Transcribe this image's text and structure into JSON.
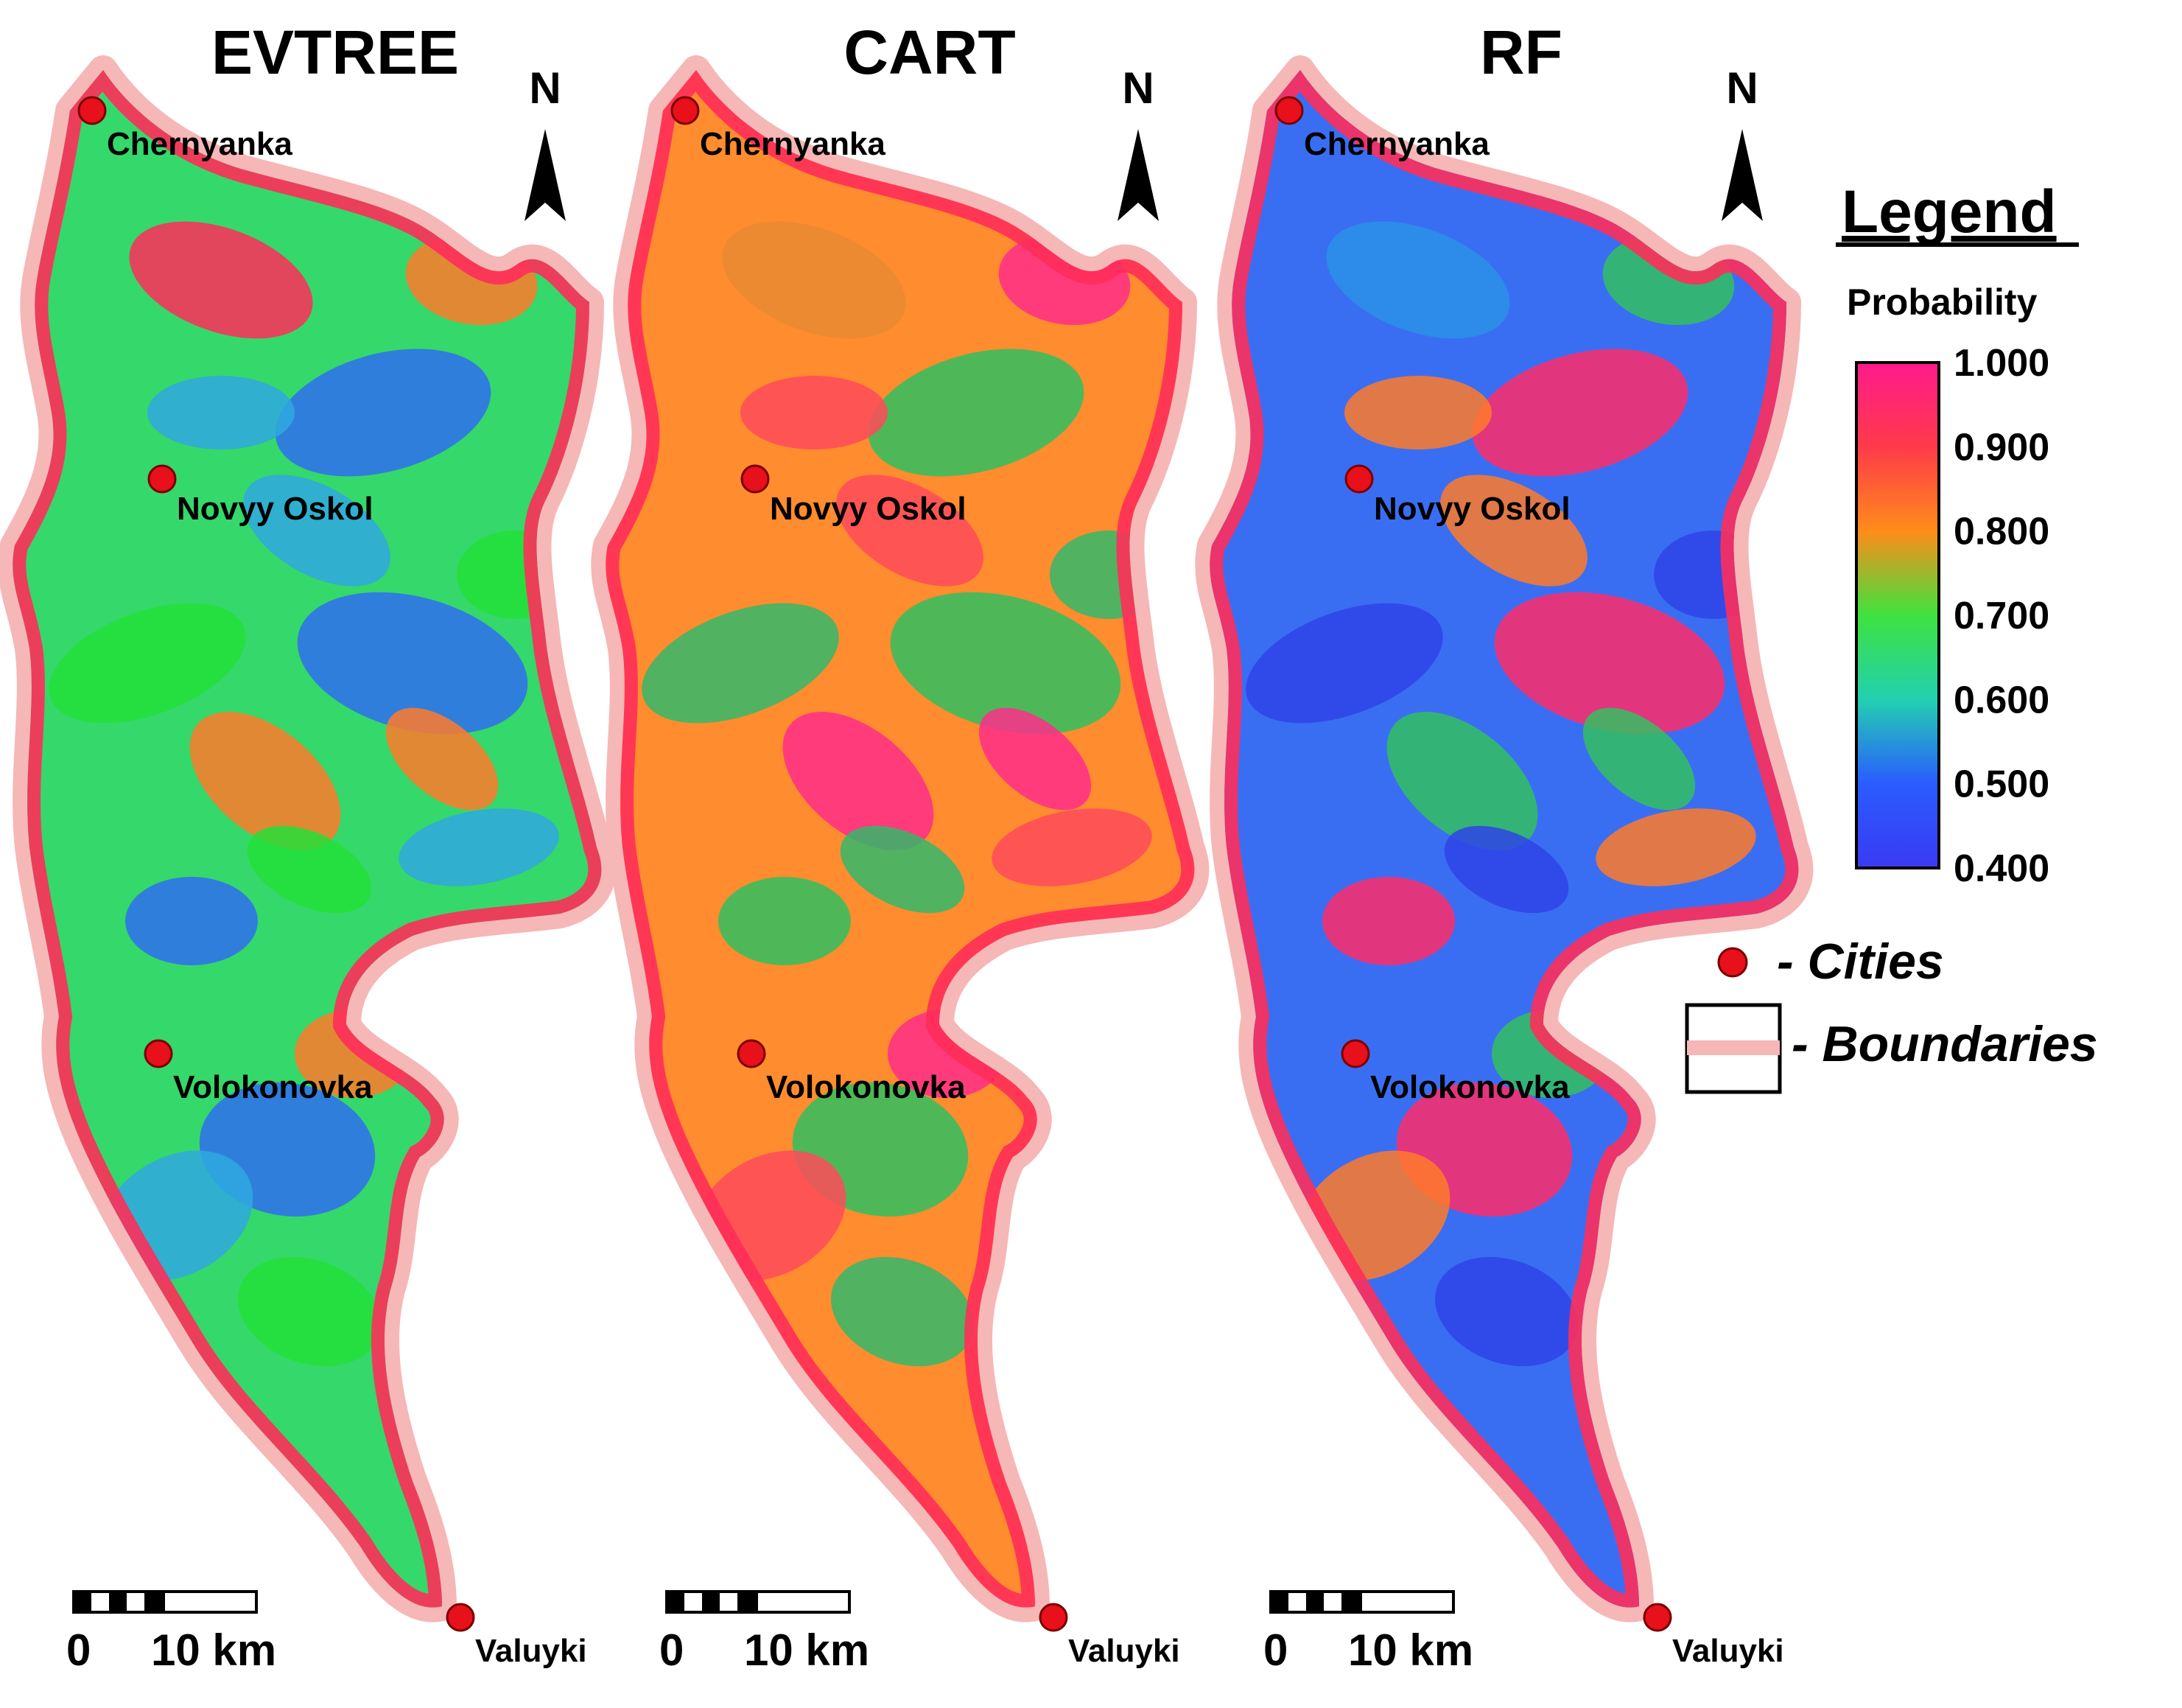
{
  "panels": [
    {
      "id": "evtree",
      "title": "EVTREE",
      "base": "#35d86a",
      "patches": [
        "#2f6ef0",
        "#ff7a2a",
        "#ff2d5a",
        "#22e03a",
        "#2fa8e0"
      ]
    },
    {
      "id": "cart",
      "title": "CART",
      "base": "#ff8c2e",
      "patches": [
        "#ff4a5a",
        "#2fc060",
        "#ff2d8a",
        "#e88a30",
        "#32b86a"
      ]
    },
    {
      "id": "rf",
      "title": "RF",
      "base": "#3a6ef2",
      "patches": [
        "#2f44e8",
        "#ff7a2a",
        "#ff2d6a",
        "#34c060",
        "#2b90e8"
      ]
    }
  ],
  "cities": [
    {
      "name": "Chernyanka"
    },
    {
      "name": "Novyy Oskol"
    },
    {
      "name": "Volokonovka"
    },
    {
      "name": "Valuyki"
    }
  ],
  "north_label": "N",
  "scale_bar": {
    "start_label": "0",
    "end_label": "10 km"
  },
  "legend": {
    "title": "Legend",
    "subtitle": "Probability",
    "ticks": [
      "1.000",
      "0.900",
      "0.800",
      "0.700",
      "0.600",
      "0.500",
      "0.400"
    ],
    "gradient_colors": [
      "#ff1a8c",
      "#ff3a4a",
      "#ff8c1a",
      "#3ee23e",
      "#22d0b0",
      "#2a5cff",
      "#3a3af2"
    ],
    "cities_label": "- Cities",
    "boundaries_label": "- Boundaries",
    "city_color": "#e8101a",
    "boundary_color": "#f6b7b7"
  }
}
